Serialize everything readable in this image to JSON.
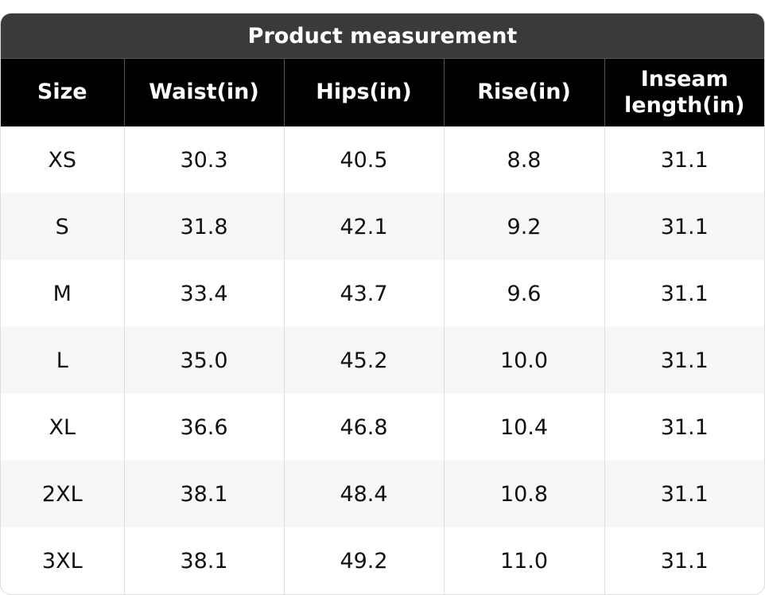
{
  "title": "Product measurement",
  "table": {
    "header": [
      "Size",
      "Waist(in)",
      "Hips(in)",
      "Rise(in)",
      "Inseam length(in)"
    ],
    "rows": [
      [
        "XS",
        "30.3",
        "40.5",
        "8.8",
        "31.1"
      ],
      [
        "S",
        "31.8",
        "42.1",
        "9.2",
        "31.1"
      ],
      [
        "M",
        "33.4",
        "43.7",
        "9.6",
        "31.1"
      ],
      [
        "L",
        "35.0",
        "45.2",
        "10.0",
        "31.1"
      ],
      [
        "XL",
        "36.6",
        "46.8",
        "10.4",
        "31.1"
      ],
      [
        "2XL",
        "38.1",
        "48.4",
        "10.8",
        "31.1"
      ],
      [
        "3XL",
        "38.1",
        "49.2",
        "11.0",
        "31.1"
      ]
    ]
  }
}
